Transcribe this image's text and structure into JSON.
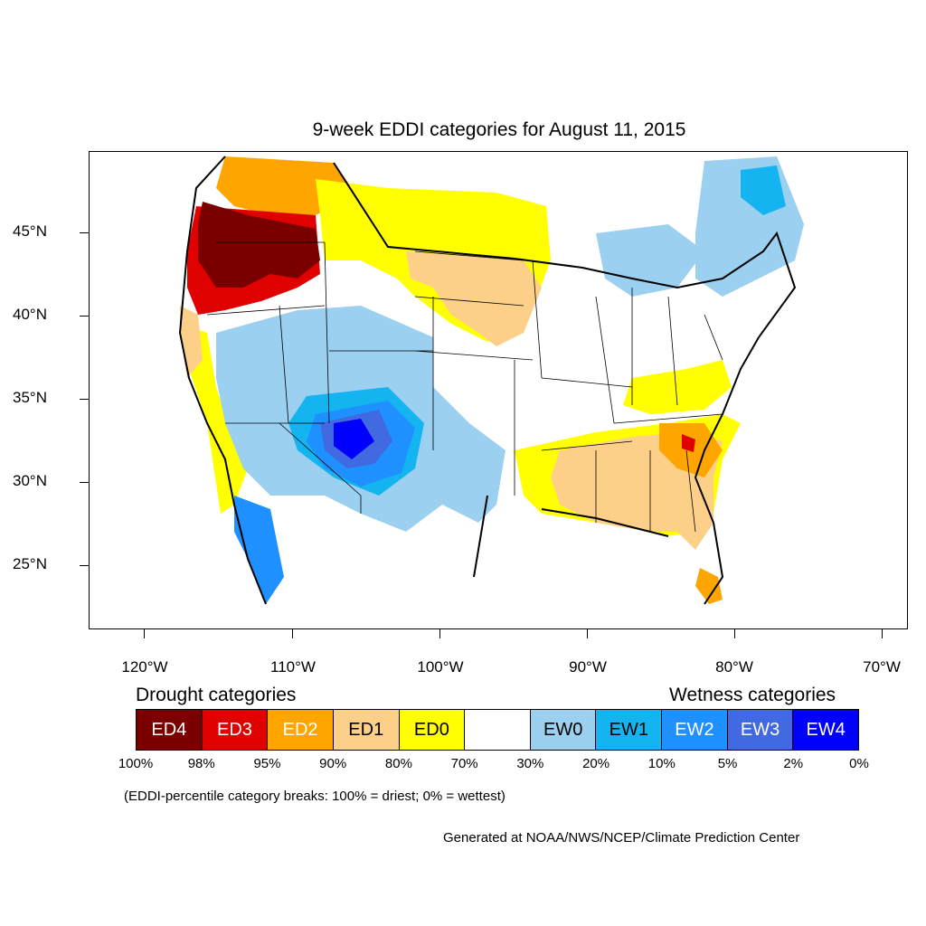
{
  "title": "9-week EDDI categories for August 11, 2015",
  "y_axis": {
    "labels": [
      "45°N",
      "40°N",
      "35°N",
      "30°N",
      "25°N"
    ]
  },
  "x_axis": {
    "labels": [
      "120°W",
      "110°W",
      "100°W",
      "90°W",
      "80°W",
      "70°W"
    ]
  },
  "legend": {
    "drought_heading": "Drought categories",
    "wetness_heading": "Wetness categories",
    "categories": [
      {
        "label": "ED4",
        "color": "#7a0000",
        "text_color": "#ffffff"
      },
      {
        "label": "ED3",
        "color": "#e00000",
        "text_color": "#ffffff"
      },
      {
        "label": "ED2",
        "color": "#ffa500",
        "text_color": "#ffffff"
      },
      {
        "label": "ED1",
        "color": "#fdd08a",
        "text_color": "#000000"
      },
      {
        "label": "ED0",
        "color": "#ffff00",
        "text_color": "#000000"
      },
      {
        "label": "",
        "color": "#ffffff",
        "text_color": "#000000"
      },
      {
        "label": "EW0",
        "color": "#9bd0f0",
        "text_color": "#000000"
      },
      {
        "label": "EW1",
        "color": "#14b4f0",
        "text_color": "#000000"
      },
      {
        "label": "EW2",
        "color": "#1e90ff",
        "text_color": "#ffffff"
      },
      {
        "label": "EW3",
        "color": "#4169e1",
        "text_color": "#ffffff"
      },
      {
        "label": "EW4",
        "color": "#0000ff",
        "text_color": "#ffffff"
      }
    ],
    "breaks": [
      "100%",
      "98%",
      "95%",
      "90%",
      "80%",
      "70%",
      "30%",
      "20%",
      "10%",
      "5%",
      "2%",
      "0%"
    ]
  },
  "note": "(EDDI-percentile category breaks: 100% = driest; 0% = wettest)",
  "credit": "Generated at NOAA/NWS/NCEP/Climate Prediction Center"
}
